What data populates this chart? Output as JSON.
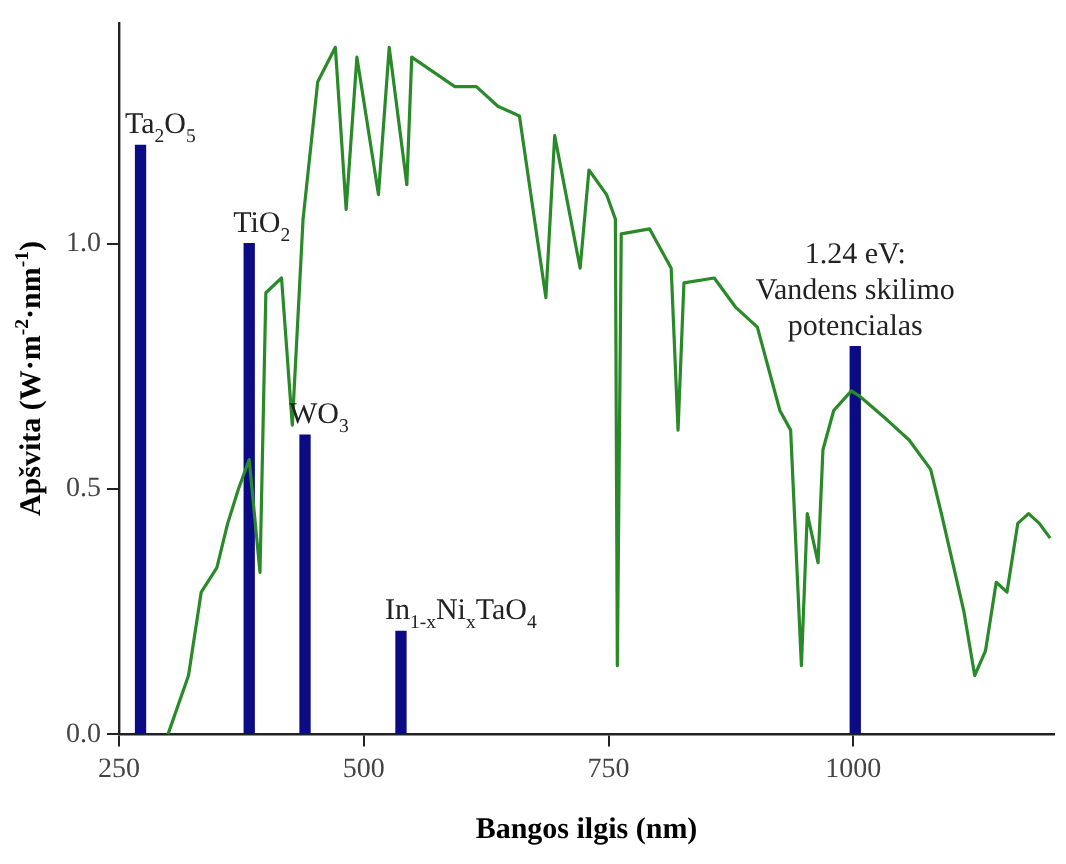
{
  "chart_data": {
    "type": "line",
    "xlabel": "Bangos ilgis (nm)",
    "ylabel": "Apšvita (W·m$^{-2}$·nm$^{-1}$)",
    "xlim": [
      250,
      1205
    ],
    "ylim": [
      0,
      1.45
    ],
    "xticks": [
      250,
      500,
      750,
      1000
    ],
    "yticks": [
      {
        "value": 0,
        "label": "0.0"
      },
      {
        "value": 0.5,
        "label": "0.5"
      },
      {
        "value": 1,
        "label": "1.0"
      }
    ],
    "grid": false,
    "legend": false,
    "marker": "none",
    "line_style": "solid",
    "series": [
      {
        "type": "bar",
        "color": "#0b0b84",
        "x": [
          272,
          383,
          440,
          538,
          1002
        ],
        "values": [
          1.2,
          1.0,
          0.61,
          0.21,
          0.79
        ]
      },
      {
        "color": "#2a8a2a",
        "x": [
          300,
          321,
          334,
          350,
          361,
          372,
          383,
          394,
          400,
          416,
          427,
          438,
          453,
          471,
          482,
          493,
          515,
          526,
          544,
          549,
          571,
          593,
          615,
          637,
          659,
          686,
          695,
          721,
          730,
          748,
          757,
          759,
          763,
          792,
          814,
          821,
          827,
          858,
          880,
          902,
          925,
          936,
          947,
          953,
          964,
          969,
          980,
          998,
          1006,
          1035,
          1057,
          1079,
          1090,
          1113,
          1124,
          1135,
          1146,
          1157,
          1168,
          1179,
          1190,
          1201
        ],
        "values": [
          0,
          0.12,
          0.29,
          0.34,
          0.43,
          0.5,
          0.56,
          0.33,
          0.9,
          0.93,
          0.63,
          1.05,
          1.33,
          1.4,
          1.07,
          1.38,
          1.1,
          1.4,
          1.12,
          1.38,
          1.35,
          1.32,
          1.32,
          1.28,
          1.26,
          0.89,
          1.22,
          0.95,
          1.15,
          1.1,
          1.05,
          0.14,
          1.02,
          1.03,
          0.95,
          0.62,
          0.92,
          0.93,
          0.87,
          0.83,
          0.66,
          0.62,
          0.14,
          0.45,
          0.35,
          0.58,
          0.66,
          0.7,
          0.69,
          0.64,
          0.6,
          0.54,
          0.45,
          0.25,
          0.12,
          0.17,
          0.31,
          0.29,
          0.43,
          0.45,
          0.43,
          0.4
        ]
      }
    ],
    "annotations": [
      {
        "text": "Ta$_{2}$O$_{5}$",
        "x": 272,
        "y": 1.2
      },
      {
        "text": "TiO$_{2}$",
        "x": 383,
        "y": 1.0
      },
      {
        "text": "WO$_{3}$",
        "x": 440,
        "y": 0.61
      },
      {
        "text": "In$_{1-x}$Ni$_{x}$TaO$_{4}$",
        "x": 538,
        "y": 0.21
      },
      {
        "text": "1.24 eV:\nVandens skilimo\npotencialas",
        "x": 1002,
        "y": 0.79
      }
    ]
  }
}
